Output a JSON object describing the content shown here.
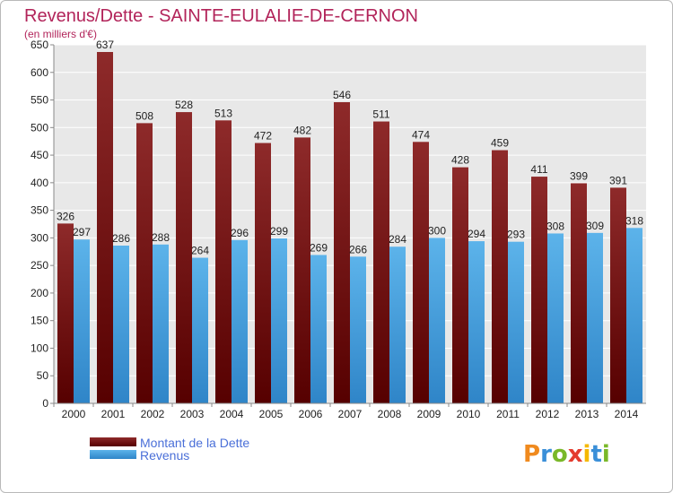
{
  "chart_data": {
    "type": "bar",
    "title": "Revenus/Dette - SAINTE-EULALIE-DE-CERNON",
    "subtitle": "(en milliers d'€)",
    "categories": [
      "2000",
      "2001",
      "2002",
      "2003",
      "2004",
      "2005",
      "2006",
      "2007",
      "2008",
      "2009",
      "2010",
      "2011",
      "2012",
      "2013",
      "2014"
    ],
    "series": [
      {
        "name": "Montant de la Dette",
        "color": "#7a1c1c",
        "values": [
          326,
          637,
          508,
          528,
          513,
          472,
          482,
          546,
          511,
          474,
          428,
          459,
          411,
          399,
          391
        ]
      },
      {
        "name": "Revenus",
        "color": "#4aa3e0",
        "values": [
          297,
          286,
          288,
          264,
          296,
          299,
          269,
          266,
          284,
          300,
          294,
          293,
          308,
          309,
          318
        ]
      }
    ],
    "ylim": [
      0,
      650
    ],
    "yticks": [
      0,
      50,
      100,
      150,
      200,
      250,
      300,
      350,
      400,
      450,
      500,
      550,
      600,
      650
    ],
    "grid": true,
    "legend_position": "bottom-left"
  },
  "brand": {
    "letters": [
      "P",
      "r",
      "o",
      "x",
      "i",
      "t",
      "i"
    ],
    "colors": [
      "#f08a1e",
      "#3a8fd8",
      "#7ab829",
      "#e43c2f",
      "#f5b800",
      "#3a8fd8",
      "#7ab829"
    ]
  }
}
